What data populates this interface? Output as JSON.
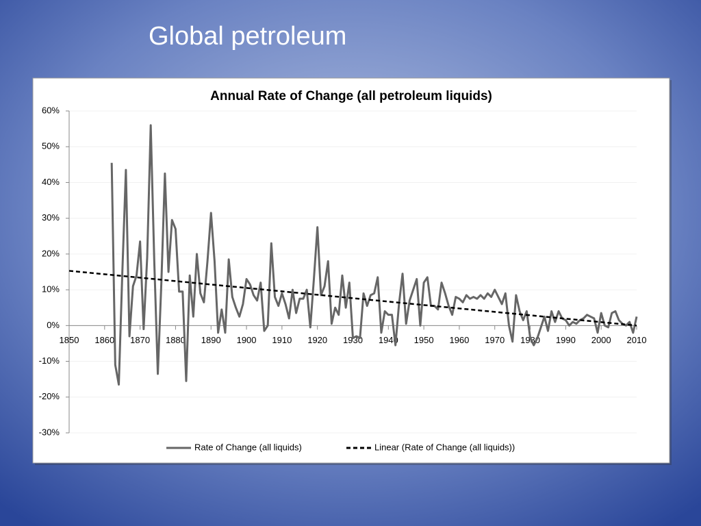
{
  "slide": {
    "title": "Global petroleum"
  },
  "chart_data": {
    "type": "line",
    "title": "Annual Rate of Change (all petroleum liquids)",
    "xlim": [
      1850,
      2010
    ],
    "xticks": [
      1850,
      1860,
      1870,
      1880,
      1890,
      1900,
      1910,
      1920,
      1930,
      1940,
      1950,
      1960,
      1970,
      1980,
      1990,
      2000,
      2010
    ],
    "ylim": [
      -30,
      60
    ],
    "yticks": [
      {
        "value": -30,
        "label": "-30%"
      },
      {
        "value": -20,
        "label": "-20%"
      },
      {
        "value": -10,
        "label": "-10%"
      },
      {
        "value": 0,
        "label": "0%"
      },
      {
        "value": 10,
        "label": "10%"
      },
      {
        "value": 20,
        "label": "20%"
      },
      {
        "value": 30,
        "label": "30%"
      },
      {
        "value": 40,
        "label": "40%"
      },
      {
        "value": 50,
        "label": "50%"
      },
      {
        "value": 60,
        "label": "60%"
      }
    ],
    "grid": true,
    "legend": "bottom",
    "series": [
      {
        "name": "Rate of Change (all liquids)",
        "color": "#666666",
        "dashed": false,
        "x": [
          1862,
          1863,
          1864,
          1865,
          1866,
          1867,
          1868,
          1869,
          1870,
          1871,
          1872,
          1873,
          1874,
          1875,
          1876,
          1877,
          1878,
          1879,
          1880,
          1881,
          1882,
          1883,
          1884,
          1885,
          1886,
          1887,
          1888,
          1889,
          1890,
          1891,
          1892,
          1893,
          1894,
          1895,
          1896,
          1897,
          1898,
          1899,
          1900,
          1901,
          1902,
          1903,
          1904,
          1905,
          1906,
          1907,
          1908,
          1909,
          1910,
          1911,
          1912,
          1913,
          1914,
          1915,
          1916,
          1917,
          1918,
          1919,
          1920,
          1921,
          1922,
          1923,
          1924,
          1925,
          1926,
          1927,
          1928,
          1929,
          1930,
          1931,
          1932,
          1933,
          1934,
          1935,
          1936,
          1937,
          1938,
          1939,
          1940,
          1941,
          1942,
          1943,
          1944,
          1945,
          1946,
          1947,
          1948,
          1949,
          1950,
          1951,
          1952,
          1953,
          1954,
          1955,
          1956,
          1957,
          1958,
          1959,
          1960,
          1961,
          1962,
          1963,
          1964,
          1965,
          1966,
          1967,
          1968,
          1969,
          1970,
          1971,
          1972,
          1973,
          1974,
          1975,
          1976,
          1977,
          1978,
          1979,
          1980,
          1981,
          1982,
          1983,
          1984,
          1985,
          1986,
          1987,
          1988,
          1989,
          1990,
          1991,
          1992,
          1993,
          1994,
          1995,
          1996,
          1997,
          1998,
          1999,
          2000,
          2001,
          2002,
          2003,
          2004,
          2005,
          2006,
          2007,
          2008,
          2009,
          2010
        ],
        "values": [
          45.5,
          -11,
          -16.5,
          15,
          43.5,
          -3,
          11,
          14,
          23.5,
          -1,
          19,
          56,
          18,
          -13.5,
          12,
          42.5,
          15,
          29.5,
          27,
          9.5,
          9.5,
          -15.5,
          14,
          2.5,
          20,
          9,
          6.5,
          18,
          31.5,
          18,
          -2,
          4.5,
          -2,
          18.5,
          8,
          5,
          2.5,
          6,
          13,
          11.5,
          8.5,
          7,
          12,
          -1.5,
          0,
          23,
          8,
          5.5,
          9,
          6,
          2,
          10,
          3.5,
          7.5,
          7.5,
          10,
          -0.5,
          13,
          27.5,
          8.5,
          11,
          18,
          0.5,
          5,
          3,
          14,
          5,
          12,
          -3.5,
          -3,
          -3.5,
          9,
          5.5,
          8.5,
          9,
          13.5,
          -2,
          4,
          3,
          3,
          -5.5,
          6,
          14.5,
          0.5,
          7,
          10,
          13,
          0,
          12,
          13.5,
          5.5,
          5.5,
          4.5,
          12,
          9,
          5.5,
          3,
          8,
          7.5,
          6.5,
          8.5,
          7.5,
          8,
          7.5,
          8.5,
          7.5,
          9,
          8,
          10,
          8,
          6,
          9,
          0,
          -4.5,
          8.5,
          4,
          1.5,
          4,
          -3.5,
          -5.5,
          -3.5,
          -0.5,
          2.5,
          -1.5,
          4,
          1,
          4,
          2,
          1.5,
          0,
          1,
          0.5,
          1.5,
          2,
          3,
          2.5,
          2,
          -2,
          3.5,
          0,
          -0.5,
          3.5,
          4,
          1.5,
          0.5,
          0,
          1,
          -2,
          2.5
        ]
      },
      {
        "name": "Linear (Rate of Change (all liquids))",
        "color": "#000000",
        "dashed": true,
        "x": [
          1850,
          2010
        ],
        "values": [
          15.3,
          0
        ]
      }
    ]
  }
}
